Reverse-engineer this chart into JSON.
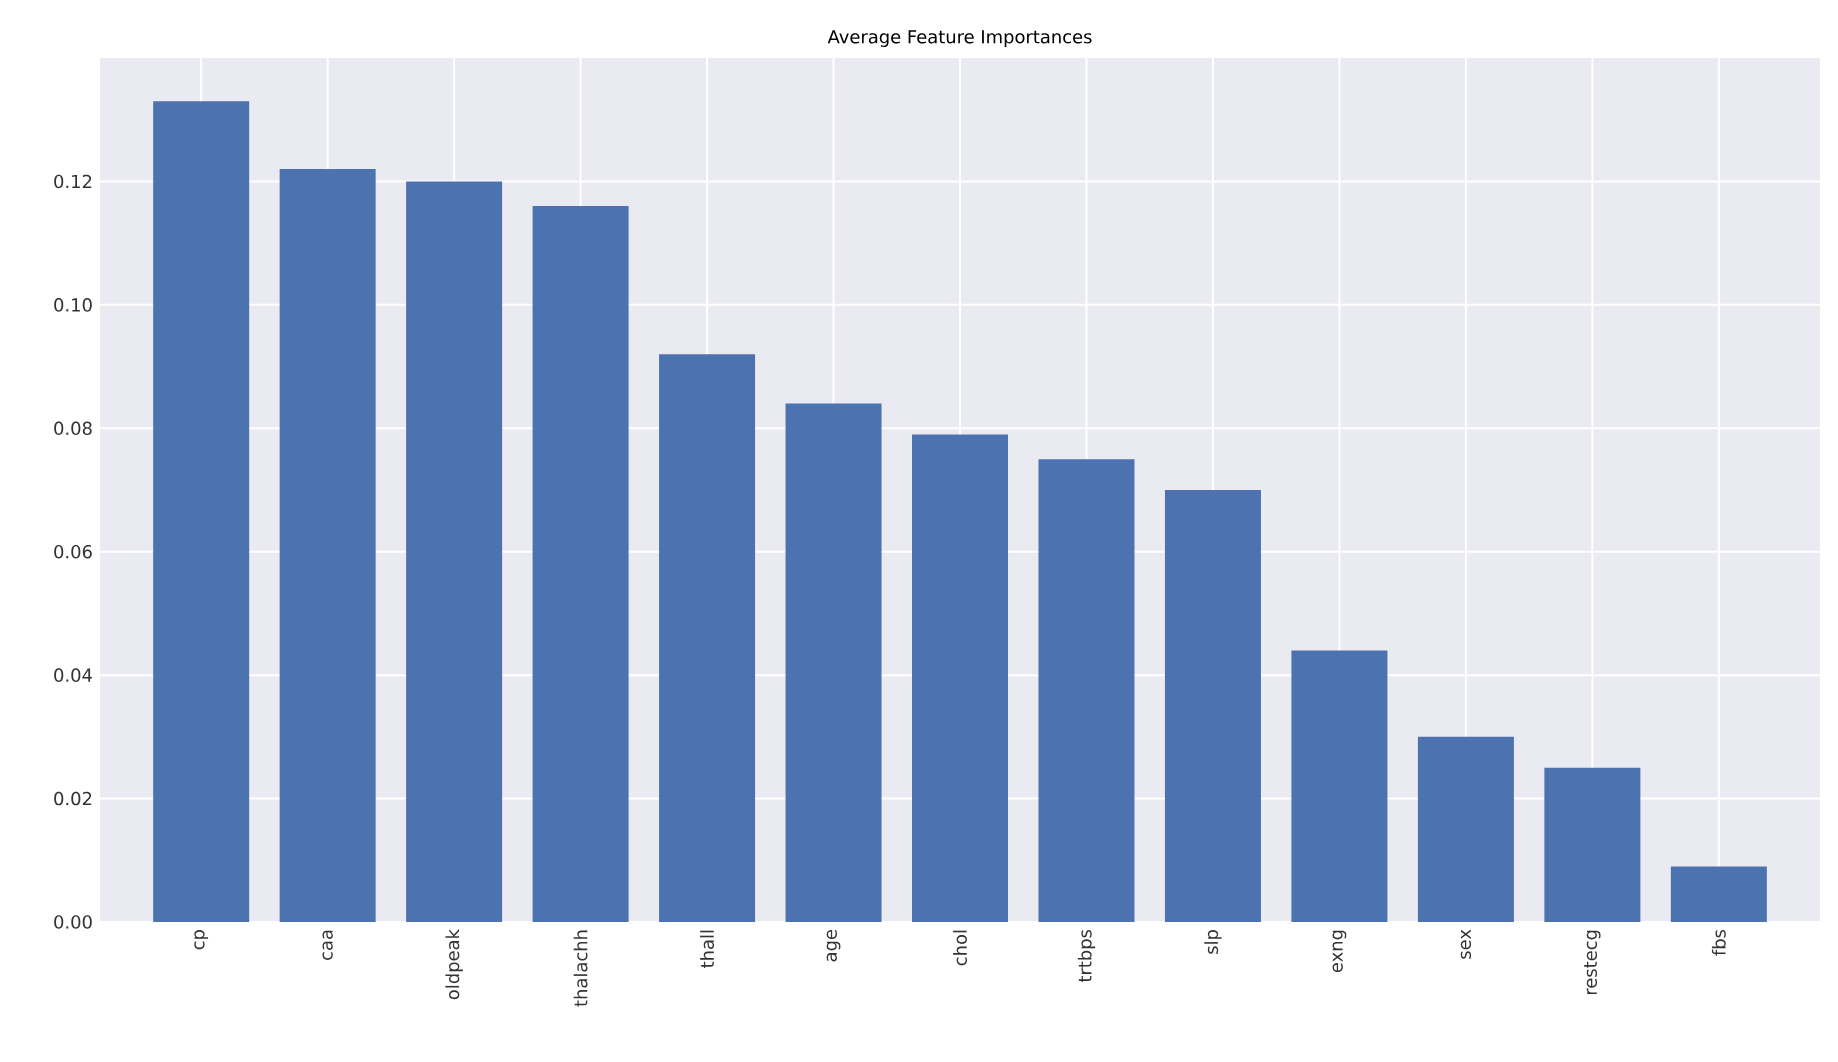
{
  "chart_data": {
    "type": "bar",
    "title": "Average Feature Importances",
    "categories": [
      "cp",
      "caa",
      "oldpeak",
      "thalachh",
      "thall",
      "age",
      "chol",
      "trtbps",
      "slp",
      "exng",
      "sex",
      "restecg",
      "fbs"
    ],
    "values": [
      0.133,
      0.122,
      0.12,
      0.116,
      0.092,
      0.084,
      0.079,
      0.075,
      0.07,
      0.044,
      0.03,
      0.025,
      0.009
    ],
    "color": "#4c72b0",
    "ylim": [
      0,
      0.14
    ],
    "yticks": [
      {
        "value": 0,
        "label": "0.00"
      },
      {
        "value": 0.02,
        "label": "0.02"
      },
      {
        "value": 0.04,
        "label": "0.04"
      },
      {
        "value": 0.06,
        "label": "0.06"
      },
      {
        "value": 0.08,
        "label": "0.08"
      },
      {
        "value": 0.1,
        "label": "0.10"
      },
      {
        "value": 0.12,
        "label": "0.12"
      }
    ],
    "grid": true
  }
}
